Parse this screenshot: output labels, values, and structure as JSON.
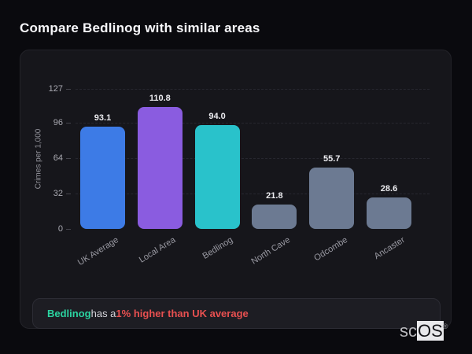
{
  "page": {
    "title": "Compare Bedlinog with similar areas"
  },
  "chart_data": {
    "type": "bar",
    "categories": [
      "UK Average",
      "Local Area",
      "Bedlinog",
      "North Cave",
      "Odcombe",
      "Ancaster"
    ],
    "values": [
      93.1,
      110.8,
      94.0,
      21.8,
      55.7,
      28.6
    ],
    "value_labels": [
      "93.1",
      "110.8",
      "94.0",
      "21.8",
      "55.7",
      "28.6"
    ],
    "bar_colors": [
      "#3d7be6",
      "#8a5ce0",
      "#29c2cb",
      "#6c7a92",
      "#6c7a92",
      "#6c7a92"
    ],
    "title": "",
    "xlabel": "",
    "ylabel": "Crimes per 1,000",
    "ylim": [
      0,
      127
    ],
    "yticks": [
      0,
      32,
      64,
      96,
      127
    ],
    "grid": "horizontal-dashed",
    "legend": "none",
    "x_label_rotation_deg": -32
  },
  "note": {
    "area_name": "Bedlinog",
    "middle_text": " has a ",
    "highlight_text": "1% higher than UK average",
    "area_color": "#2bd3a0",
    "highlight_color": "#e85050"
  },
  "logo": {
    "prefix": "sc",
    "suffix": "OS",
    "registered_mark": "®"
  },
  "colors": {
    "page_background": "#0a0a0e",
    "card_background": "#16161b",
    "card_border": "#232329",
    "note_background": "#1d1d23",
    "text_primary": "#f7f7fa",
    "text_muted": "#9a9aa3"
  }
}
